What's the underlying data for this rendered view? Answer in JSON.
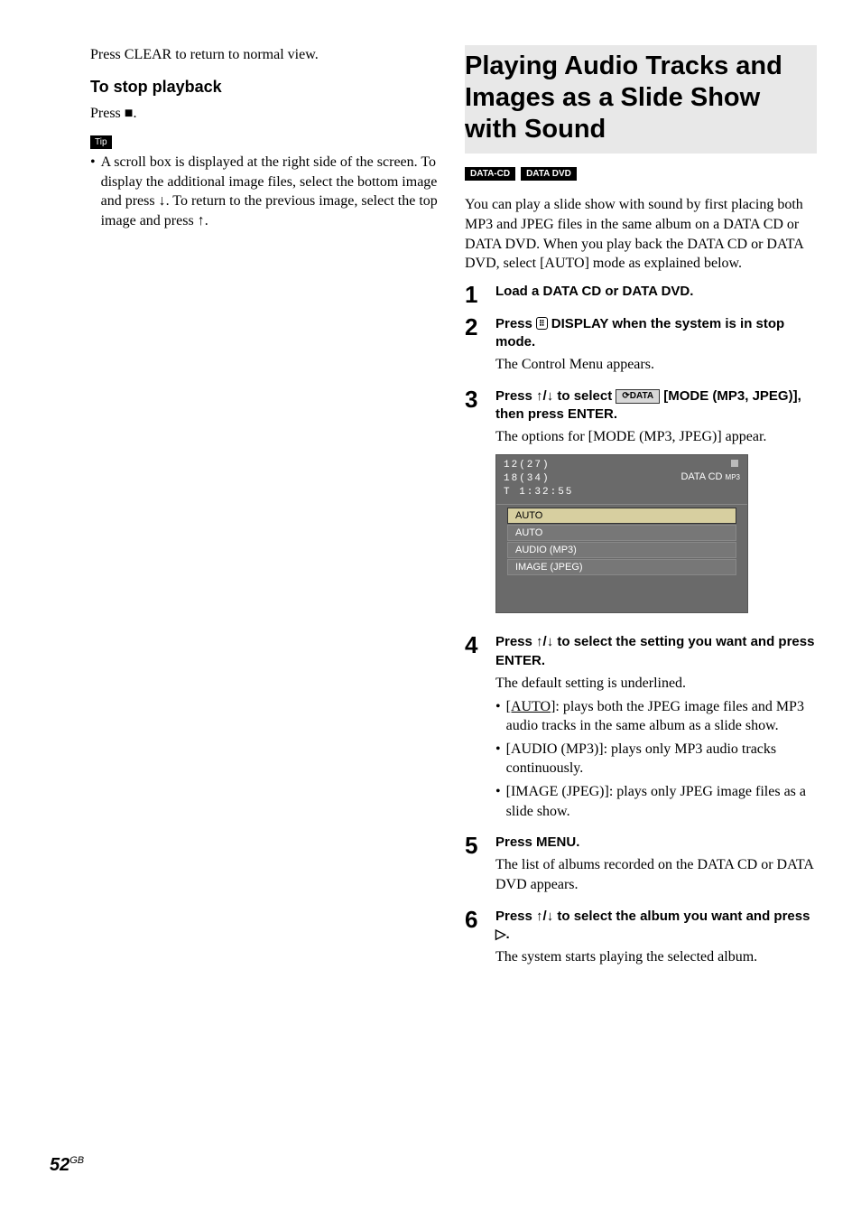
{
  "left": {
    "intro": "Press CLEAR to return to normal view.",
    "stop_heading": "To stop playback",
    "stop_text_a": "Press ",
    "stop_text_b": ".",
    "tip_label": "Tip",
    "tip_bullet": "•",
    "tip_text": "A scroll box is displayed at the right side of the screen. To display the additional image files, select the bottom image and press ↓. To return to the previous image, select the top image and press ↑."
  },
  "right": {
    "title": "Playing Audio Tracks and Images as a Slide Show with Sound",
    "badges": [
      "DATA-CD",
      "DATA DVD"
    ],
    "intro": "You can play a slide show with sound by first placing both MP3 and JPEG files in the same album on a DATA CD or DATA DVD. When you play back the DATA CD or DATA DVD, select [AUTO] mode as explained below.",
    "steps": {
      "s1": {
        "num": "1",
        "head": "Load a DATA CD or DATA DVD."
      },
      "s2": {
        "num": "2",
        "head_a": "Press ",
        "head_b": " DISPLAY when the system is in stop mode.",
        "text": "The Control Menu appears."
      },
      "s3": {
        "num": "3",
        "head_a": "Press ↑/↓ to select ",
        "head_b": " [MODE (MP3, JPEG)], then press ENTER.",
        "text": "The options for [MODE (MP3, JPEG)] appear.",
        "osd": {
          "l1": "12(27)",
          "l2": "18(34)",
          "l3": "T   1:32:55",
          "datacd": "DATA CD",
          "datacd_sub": "MP3",
          "sel": "AUTO",
          "opts": [
            "AUTO",
            "AUDIO (MP3)",
            "IMAGE (JPEG)"
          ]
        }
      },
      "s4": {
        "num": "4",
        "head": "Press ↑/↓ to select the setting you want and press ENTER.",
        "text": "The default setting is underlined.",
        "items": [
          {
            "b": "•",
            "u": "[AUTO]",
            "rest": ": plays both the JPEG image files and MP3 audio tracks in the same album as a slide show."
          },
          {
            "b": "•",
            "t": "[AUDIO (MP3)]: plays only MP3 audio tracks continuously."
          },
          {
            "b": "•",
            "t": "[IMAGE (JPEG)]: plays only JPEG image files as a slide show."
          }
        ]
      },
      "s5": {
        "num": "5",
        "head": "Press MENU.",
        "text": "The list of albums recorded on the DATA CD or DATA DVD appears."
      },
      "s6": {
        "num": "6",
        "head": "Press ↑/↓ to select the album you want and press ▷.",
        "text": "The system starts playing the selected album."
      }
    }
  },
  "footer": {
    "page": "52",
    "region": "GB"
  },
  "glyphs": {
    "stop": "■",
    "display": "⌨",
    "mode_icon": "⟳DATA"
  }
}
